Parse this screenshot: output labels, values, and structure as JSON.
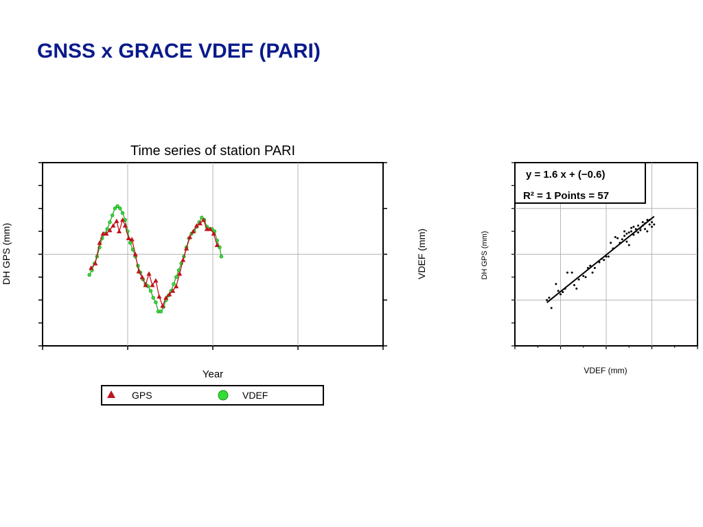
{
  "slide": {
    "title": "GNSS x GRACE VDEF (PARI)"
  },
  "colors": {
    "title": "#0a1a8c",
    "gps": "#c0141c",
    "vdef": "#33dd33",
    "grid": "#b4b4b4"
  },
  "chart_data": [
    {
      "type": "line",
      "title": "Time series of station PARI",
      "xlabel": "Year",
      "ylabel": "DH GPS (mm)",
      "y2label": "VDEF  (mm)",
      "xlim": [
        2007,
        2011
      ],
      "ylim": [
        -80,
        80
      ],
      "y2lim": [
        -40,
        40
      ],
      "x_ticks": [
        "2007",
        "2008",
        "2009",
        "2010",
        "2011"
      ],
      "y_ticks": [
        "80",
        "60",
        "40",
        "20",
        "0",
        "−20",
        "−40",
        "−60",
        "−80"
      ],
      "y2_ticks": [
        "40",
        "20",
        "0",
        "−20",
        "−40"
      ],
      "grid": true,
      "legend": {
        "position": "bottom",
        "entries": [
          "GPS",
          "VDEF"
        ]
      },
      "series": [
        {
          "name": "GPS",
          "axis": "left",
          "marker": "triangle",
          "color": "#c0141c",
          "points": [
            [
              2007.57,
              -12
            ],
            [
              2007.62,
              -8
            ],
            [
              2007.67,
              10
            ],
            [
              2007.71,
              18
            ],
            [
              2007.75,
              18
            ],
            [
              2007.79,
              21
            ],
            [
              2007.83,
              25
            ],
            [
              2007.87,
              29
            ],
            [
              2007.9,
              20
            ],
            [
              2007.94,
              30
            ],
            [
              2007.97,
              25
            ],
            [
              2008.01,
              14
            ],
            [
              2008.05,
              13
            ],
            [
              2008.09,
              0
            ],
            [
              2008.13,
              -15
            ],
            [
              2008.17,
              -20
            ],
            [
              2008.21,
              -27
            ],
            [
              2008.25,
              -17
            ],
            [
              2008.29,
              -27
            ],
            [
              2008.33,
              -23
            ],
            [
              2008.37,
              -37
            ],
            [
              2008.41,
              -45
            ],
            [
              2008.45,
              -38
            ],
            [
              2008.49,
              -35
            ],
            [
              2008.53,
              -32
            ],
            [
              2008.57,
              -28
            ],
            [
              2008.61,
              -17
            ],
            [
              2008.65,
              -5
            ],
            [
              2008.69,
              5
            ],
            [
              2008.73,
              15
            ],
            [
              2008.77,
              20
            ],
            [
              2008.81,
              25
            ],
            [
              2008.85,
              27
            ],
            [
              2008.89,
              30
            ],
            [
              2008.93,
              22
            ],
            [
              2008.97,
              22
            ],
            [
              2009.01,
              18
            ],
            [
              2009.05,
              8
            ]
          ]
        },
        {
          "name": "VDEF",
          "axis": "right",
          "marker": "circle",
          "color": "#33dd33",
          "points": [
            [
              2007.55,
              -9
            ],
            [
              2007.58,
              -7
            ],
            [
              2007.61,
              -4
            ],
            [
              2007.64,
              -1
            ],
            [
              2007.67,
              3
            ],
            [
              2007.7,
              7
            ],
            [
              2007.73,
              9
            ],
            [
              2007.76,
              11
            ],
            [
              2007.79,
              14
            ],
            [
              2007.82,
              17
            ],
            [
              2007.85,
              20
            ],
            [
              2007.88,
              21
            ],
            [
              2007.91,
              20
            ],
            [
              2007.94,
              18
            ],
            [
              2007.97,
              15
            ],
            [
              2008.0,
              10
            ],
            [
              2008.03,
              5
            ],
            [
              2008.06,
              2
            ],
            [
              2008.09,
              -1
            ],
            [
              2008.12,
              -5
            ],
            [
              2008.15,
              -8
            ],
            [
              2008.18,
              -11
            ],
            [
              2008.21,
              -13
            ],
            [
              2008.24,
              -14
            ],
            [
              2008.27,
              -16
            ],
            [
              2008.3,
              -19
            ],
            [
              2008.33,
              -21
            ],
            [
              2008.36,
              -25
            ],
            [
              2008.39,
              -25
            ],
            [
              2008.42,
              -23
            ],
            [
              2008.45,
              -20
            ],
            [
              2008.48,
              -18
            ],
            [
              2008.51,
              -16
            ],
            [
              2008.54,
              -13
            ],
            [
              2008.57,
              -10
            ],
            [
              2008.6,
              -7
            ],
            [
              2008.63,
              -4
            ],
            [
              2008.66,
              -1
            ],
            [
              2008.69,
              3
            ],
            [
              2008.72,
              7
            ],
            [
              2008.75,
              9
            ],
            [
              2008.78,
              10
            ],
            [
              2008.81,
              12
            ],
            [
              2008.84,
              14
            ],
            [
              2008.87,
              16
            ],
            [
              2008.9,
              15
            ],
            [
              2008.93,
              12
            ],
            [
              2008.96,
              11
            ],
            [
              2008.99,
              11
            ],
            [
              2009.02,
              10
            ],
            [
              2009.05,
              6
            ],
            [
              2009.08,
              3
            ],
            [
              2009.1,
              -1
            ]
          ]
        }
      ]
    },
    {
      "type": "scatter",
      "xlabel": "VDEF  (mm)",
      "ylabel": "DH GPS (mm)",
      "xlim": [
        -40,
        40
      ],
      "ylim": [
        -80,
        80
      ],
      "x_ticks": [
        "−40",
        "−20",
        "0",
        "20",
        "40"
      ],
      "y_ticks": [
        "80",
        "60",
        "40",
        "20",
        "0",
        "−20",
        "−40",
        "−60",
        "−80"
      ],
      "grid": true,
      "annotations": [
        "y = 1.6 x + (−0.6)",
        "R² = 1  Points = 57"
      ],
      "fit_line": {
        "slope": 1.6,
        "intercept": -0.6,
        "x_range": [
          -26,
          21
        ]
      },
      "points": [
        [
          -26,
          -40
        ],
        [
          -25,
          -38
        ],
        [
          -24,
          -47
        ],
        [
          -22,
          -26
        ],
        [
          -21,
          -32
        ],
        [
          -20,
          -35
        ],
        [
          -19,
          -33
        ],
        [
          -18,
          -30
        ],
        [
          -17,
          -16
        ],
        [
          -15,
          -16
        ],
        [
          -14,
          -27
        ],
        [
          -13,
          -30
        ],
        [
          -12,
          -22
        ],
        [
          -10,
          -19
        ],
        [
          -8,
          -12
        ],
        [
          -7,
          -10
        ],
        [
          -6,
          -16
        ],
        [
          -5,
          -12
        ],
        [
          -3,
          -7
        ],
        [
          -1,
          -5
        ],
        [
          0,
          -2
        ],
        [
          1,
          -2
        ],
        [
          2,
          10
        ],
        [
          3,
          5
        ],
        [
          4,
          15
        ],
        [
          6,
          10
        ],
        [
          7,
          13
        ],
        [
          8,
          20
        ],
        [
          8,
          16
        ],
        [
          9,
          11
        ],
        [
          9,
          18
        ],
        [
          10,
          8
        ],
        [
          10,
          19
        ],
        [
          11,
          20
        ],
        [
          11,
          23
        ],
        [
          12,
          24
        ],
        [
          12,
          17
        ],
        [
          13,
          22
        ],
        [
          14,
          25
        ],
        [
          14,
          19
        ],
        [
          15,
          23
        ],
        [
          15,
          21
        ],
        [
          16,
          28
        ],
        [
          16,
          25
        ],
        [
          17,
          22
        ],
        [
          17,
          27
        ],
        [
          18,
          30
        ],
        [
          18,
          20
        ],
        [
          19,
          26
        ],
        [
          19,
          30
        ],
        [
          20,
          24
        ],
        [
          20,
          28
        ],
        [
          21,
          26
        ],
        [
          13,
          20
        ],
        [
          5,
          14
        ],
        [
          -2,
          -4
        ],
        [
          -9,
          -20
        ]
      ]
    }
  ]
}
